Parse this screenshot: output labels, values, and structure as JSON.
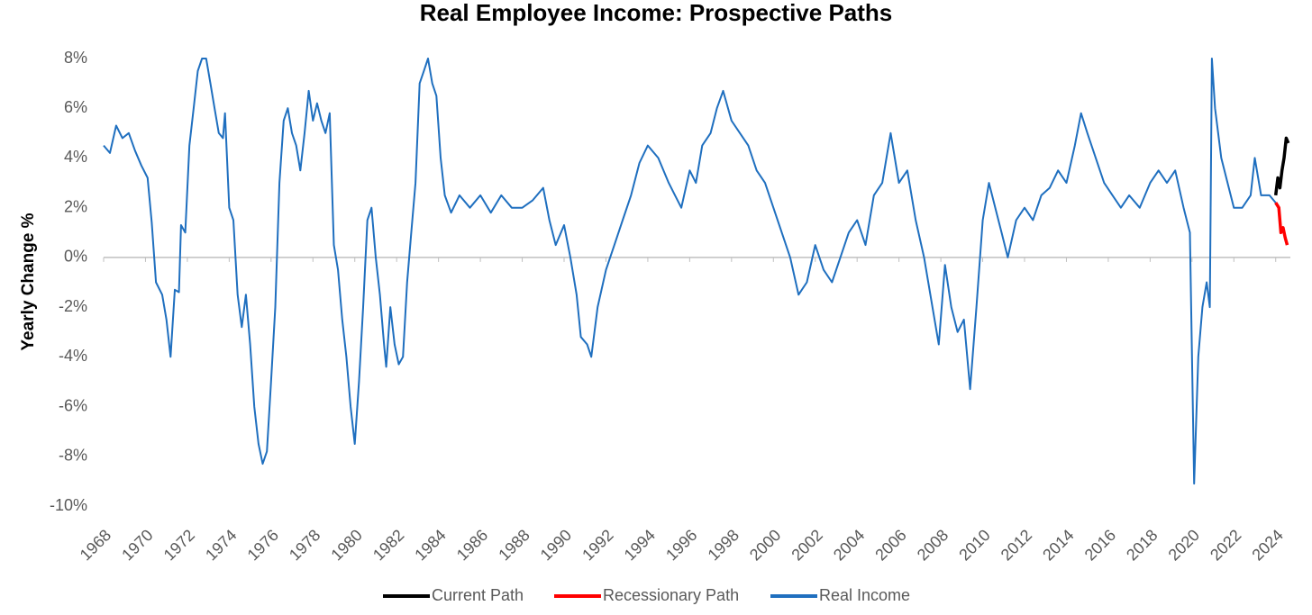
{
  "chart_data": {
    "type": "line",
    "title": "Real Employee Income: Prospective Paths",
    "y_label": "Yearly Change %",
    "xlim": [
      1968,
      2024.7
    ],
    "xticks": [
      1968,
      1970,
      1972,
      1974,
      1976,
      1978,
      1980,
      1982,
      1984,
      1986,
      1988,
      1990,
      1992,
      1994,
      1996,
      1998,
      2000,
      2002,
      2004,
      2006,
      2008,
      2010,
      2012,
      2014,
      2016,
      2018,
      2020,
      2022,
      2024
    ],
    "ylim": [
      -10,
      8
    ],
    "yticks": [
      {
        "value": -10,
        "label": "-10%"
      },
      {
        "value": -8,
        "label": "-8%"
      },
      {
        "value": -6,
        "label": "-6%"
      },
      {
        "value": -4,
        "label": "-4%"
      },
      {
        "value": -2,
        "label": "-2%"
      },
      {
        "value": 0,
        "label": "0%"
      },
      {
        "value": 2,
        "label": "2%"
      },
      {
        "value": 4,
        "label": "4%"
      },
      {
        "value": 6,
        "label": "6%"
      },
      {
        "value": 8,
        "label": "8%"
      }
    ],
    "legend": "bottom",
    "series": [
      {
        "name": "Current Path",
        "color": "#000000",
        "x": [
          2024.0,
          2024.1,
          2024.2,
          2024.3,
          2024.4,
          2024.5,
          2024.6
        ],
        "values": [
          2.5,
          3.2,
          2.8,
          3.5,
          4.0,
          4.8,
          4.6
        ]
      },
      {
        "name": "Recessionary Path",
        "color": "#ff0000",
        "x": [
          2024.0,
          2024.15,
          2024.25,
          2024.35,
          2024.45,
          2024.55
        ],
        "values": [
          2.2,
          2.0,
          1.0,
          1.2,
          0.8,
          0.5
        ]
      },
      {
        "name": "Real Income",
        "color": "#1f6fbf",
        "x": [
          1968.0,
          1968.3,
          1968.6,
          1968.9,
          1969.2,
          1969.5,
          1969.8,
          1970.1,
          1970.3,
          1970.5,
          1970.8,
          1971.0,
          1971.2,
          1971.4,
          1971.6,
          1971.7,
          1971.9,
          1972.1,
          1972.3,
          1972.5,
          1972.7,
          1972.9,
          1973.1,
          1973.3,
          1973.5,
          1973.7,
          1973.8,
          1974.0,
          1974.2,
          1974.4,
          1974.6,
          1974.8,
          1975.0,
          1975.2,
          1975.4,
          1975.6,
          1975.8,
          1976.0,
          1976.2,
          1976.4,
          1976.6,
          1976.8,
          1977.0,
          1977.2,
          1977.4,
          1977.6,
          1977.8,
          1978.0,
          1978.2,
          1978.4,
          1978.6,
          1978.8,
          1979.0,
          1979.2,
          1979.4,
          1979.6,
          1979.8,
          1980.0,
          1980.2,
          1980.4,
          1980.6,
          1980.8,
          1981.0,
          1981.2,
          1981.4,
          1981.5,
          1981.7,
          1981.9,
          1982.1,
          1982.3,
          1982.5,
          1982.7,
          1982.9,
          1983.1,
          1983.3,
          1983.5,
          1983.7,
          1983.9,
          1984.1,
          1984.3,
          1984.6,
          1985.0,
          1985.5,
          1986.0,
          1986.5,
          1987.0,
          1987.5,
          1988.0,
          1988.5,
          1989.0,
          1989.3,
          1989.6,
          1990.0,
          1990.3,
          1990.6,
          1990.8,
          1991.1,
          1991.3,
          1991.6,
          1992.0,
          1992.4,
          1992.8,
          1993.2,
          1993.6,
          1994.0,
          1994.5,
          1995.0,
          1995.3,
          1995.6,
          1996.0,
          1996.3,
          1996.6,
          1997.0,
          1997.3,
          1997.6,
          1998.0,
          1998.4,
          1998.8,
          1999.2,
          1999.6,
          2000.0,
          2000.4,
          2000.8,
          2001.2,
          2001.6,
          2002.0,
          2002.4,
          2002.8,
          2003.2,
          2003.6,
          2004.0,
          2004.4,
          2004.8,
          2005.2,
          2005.6,
          2006.0,
          2006.4,
          2006.8,
          2007.2,
          2007.6,
          2007.9,
          2008.2,
          2008.5,
          2008.8,
          2009.1,
          2009.4,
          2009.7,
          2010.0,
          2010.3,
          2010.6,
          2010.9,
          2011.2,
          2011.6,
          2012.0,
          2012.4,
          2012.8,
          2013.2,
          2013.6,
          2014.0,
          2014.4,
          2014.7,
          2015.0,
          2015.4,
          2015.8,
          2016.2,
          2016.6,
          2017.0,
          2017.5,
          2018.0,
          2018.4,
          2018.8,
          2019.2,
          2019.6,
          2019.9,
          2020.1,
          2020.3,
          2020.5,
          2020.7,
          2020.85,
          2020.95,
          2021.1,
          2021.4,
          2021.7,
          2022.0,
          2022.4,
          2022.8,
          2023.0,
          2023.3,
          2023.7,
          2024.0
        ],
        "values": [
          4.5,
          4.2,
          5.3,
          4.8,
          5.0,
          4.3,
          3.7,
          3.2,
          1.4,
          -1.0,
          -1.5,
          -2.5,
          -4.0,
          -1.3,
          -1.4,
          1.3,
          1.0,
          4.5,
          6.0,
          7.5,
          8.0,
          8.0,
          7.0,
          6.0,
          5.0,
          4.8,
          5.8,
          2.0,
          1.5,
          -1.5,
          -2.8,
          -1.5,
          -3.5,
          -6.0,
          -7.5,
          -8.3,
          -7.8,
          -5.0,
          -2.0,
          3.0,
          5.5,
          6.0,
          5.0,
          4.5,
          3.5,
          5.0,
          6.7,
          5.5,
          6.2,
          5.5,
          5.0,
          5.8,
          0.5,
          -0.5,
          -2.5,
          -4.0,
          -6.0,
          -7.5,
          -5.0,
          -2.0,
          1.5,
          2.0,
          0.0,
          -1.5,
          -3.5,
          -4.4,
          -2.0,
          -3.5,
          -4.3,
          -4.0,
          -1.0,
          1.0,
          3.0,
          7.0,
          7.5,
          8.0,
          7.0,
          6.5,
          4.0,
          2.5,
          1.8,
          2.5,
          2.0,
          2.5,
          1.8,
          2.5,
          2.0,
          2.0,
          2.3,
          2.8,
          1.5,
          0.5,
          1.3,
          0.0,
          -1.5,
          -3.2,
          -3.5,
          -4.0,
          -2.0,
          -0.5,
          0.5,
          1.5,
          2.5,
          3.8,
          4.5,
          4.0,
          3.0,
          2.5,
          2.0,
          3.5,
          3.0,
          4.5,
          5.0,
          6.0,
          6.7,
          5.5,
          5.0,
          4.5,
          3.5,
          3.0,
          2.0,
          1.0,
          0.0,
          -1.5,
          -1.0,
          0.5,
          -0.5,
          -1.0,
          0.0,
          1.0,
          1.5,
          0.5,
          2.5,
          3.0,
          5.0,
          3.0,
          3.5,
          1.5,
          0.0,
          -2.0,
          -3.5,
          -0.3,
          -2.0,
          -3.0,
          -2.5,
          -5.3,
          -2.0,
          1.5,
          3.0,
          2.0,
          1.0,
          0.0,
          1.5,
          2.0,
          1.5,
          2.5,
          2.8,
          3.5,
          3.0,
          4.5,
          5.8,
          5.0,
          4.0,
          3.0,
          2.5,
          2.0,
          2.5,
          2.0,
          3.0,
          3.5,
          3.0,
          3.5,
          2.0,
          1.0,
          -9.1,
          -4.0,
          -2.0,
          -1.0,
          -2.0,
          8.0,
          6.0,
          4.0,
          3.0,
          2.0,
          2.0,
          2.5,
          4.0,
          2.5,
          2.5,
          2.2
        ]
      }
    ]
  }
}
